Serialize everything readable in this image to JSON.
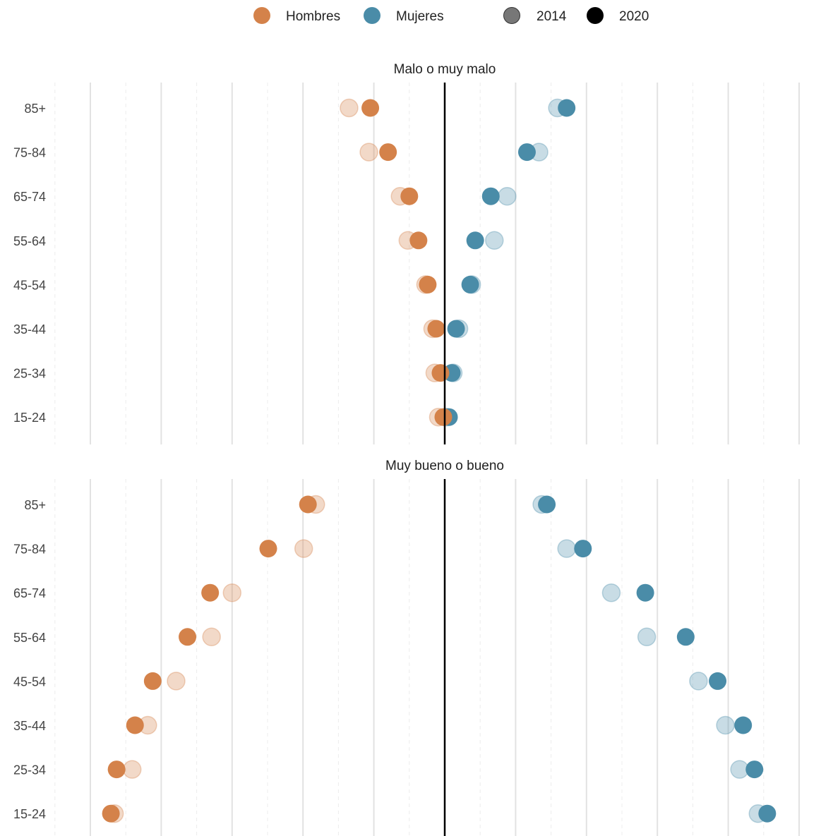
{
  "legend": {
    "groups": [
      {
        "label": "Hombres",
        "color": "#d4824a"
      },
      {
        "label": "Mujeres",
        "color": "#4a8ca8"
      }
    ],
    "years": [
      {
        "label": "2014",
        "color": "#777777"
      },
      {
        "label": "2020",
        "color": "#000000"
      }
    ]
  },
  "colors": {
    "hombres": "#d4824a",
    "mujeres": "#4a8ca8",
    "zero_line": "#000000",
    "grid_major": "#e2e2e2",
    "grid_minor": "#ececec"
  },
  "chart_data": [
    {
      "type": "scatter",
      "title": "Malo o muy malo",
      "categories": [
        "85+",
        "75-84",
        "65-74",
        "55-64",
        "45-54",
        "35-44",
        "25-34",
        "15-24"
      ],
      "xlim": [
        -50,
        50
      ],
      "series": [
        {
          "name": "Hombres",
          "year": "2014",
          "values": [
            -13.5,
            -10.7,
            -6.3,
            -5.2,
            -2.7,
            -1.7,
            -1.4,
            -0.9
          ]
        },
        {
          "name": "Hombres",
          "year": "2020",
          "values": [
            -10.5,
            -8.0,
            -5.0,
            -3.7,
            -2.4,
            -1.2,
            -0.6,
            -0.2
          ]
        },
        {
          "name": "Mujeres",
          "year": "2014",
          "values": [
            15.9,
            13.3,
            8.8,
            7.0,
            3.8,
            2.0,
            1.2,
            0.2
          ]
        },
        {
          "name": "Mujeres",
          "year": "2020",
          "values": [
            17.2,
            11.6,
            6.5,
            4.3,
            3.6,
            1.6,
            1.0,
            0.6
          ]
        }
      ]
    },
    {
      "type": "scatter",
      "title": "Muy bueno o bueno",
      "categories": [
        "85+",
        "75-84",
        "65-74",
        "55-64",
        "45-54",
        "35-44",
        "25-34",
        "15-24"
      ],
      "xlim": [
        -50,
        50
      ],
      "series": [
        {
          "name": "Hombres",
          "year": "2014",
          "values": [
            -18.2,
            -19.9,
            -30.0,
            -32.9,
            -37.9,
            -41.9,
            -44.1,
            -46.6
          ]
        },
        {
          "name": "Hombres",
          "year": "2020",
          "values": [
            -19.3,
            -24.9,
            -33.1,
            -36.3,
            -41.2,
            -43.7,
            -46.3,
            -47.1
          ]
        },
        {
          "name": "Mujeres",
          "year": "2014",
          "values": [
            13.7,
            17.2,
            23.5,
            28.5,
            35.8,
            39.6,
            41.6,
            44.2
          ]
        },
        {
          "name": "Mujeres",
          "year": "2020",
          "values": [
            14.4,
            19.5,
            28.3,
            34.0,
            38.5,
            42.1,
            43.7,
            45.5
          ]
        }
      ]
    }
  ]
}
